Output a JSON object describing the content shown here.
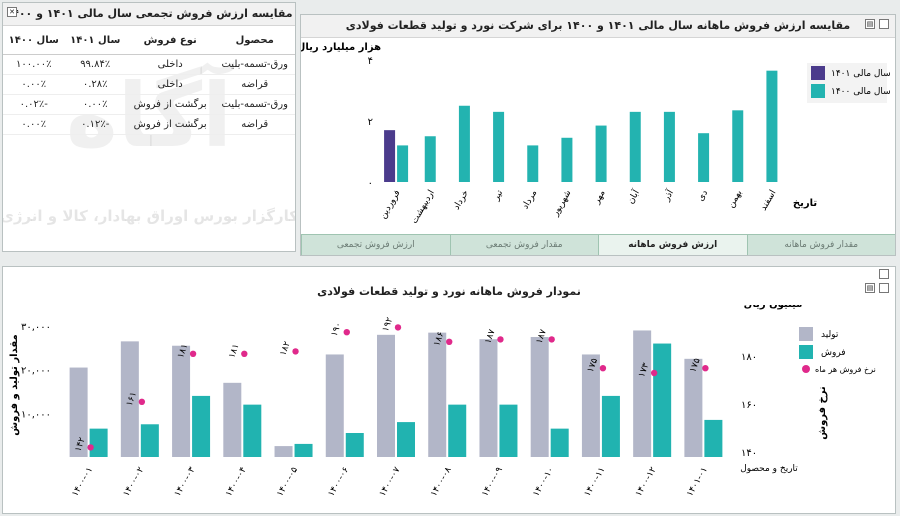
{
  "summary_panel": {
    "title": "مقایسه ارزش فروش تجمعی سال مالی ۱۴۰۱ و ۱۴۰۰",
    "headers": [
      "سال ۱۴۰۰",
      "سال ۱۴۰۱",
      "نوع فروش",
      "محصول"
    ],
    "rows": [
      [
        "۱۰۰.۰۰٪",
        "۹۹.۸۴٪",
        "داخلی",
        "ورق-تسمه-بلیت"
      ],
      [
        "۰.۰۰٪",
        "۰.۲۸٪",
        "داخلی",
        "قراضه"
      ],
      [
        "-۰.۰۲٪",
        "۰.۰۰٪",
        "برگشت از فروش",
        "ورق-تسمه-بلیت"
      ],
      [
        "۰.۰۰٪",
        "-۰.۱۲٪",
        "برگشت از فروش",
        "قراضه"
      ]
    ],
    "watermark_brand": "آگاه",
    "watermark_tagline": "کارگزار بورس اوراق بهادار، کالا و انرژی"
  },
  "monthly_panel": {
    "title": "مقایسه ارزش فروش ماهانه سال مالی ۱۴۰۱ و ۱۴۰۰ برای شرکت نورد و تولید قطعات فولادی",
    "tabs": [
      "ارزش فروش تجمعی",
      "مقدار فروش تجمعی",
      "ارزش فروش ماهانه",
      "مقدار فروش ماهانه"
    ],
    "active_tab": 2
  },
  "production_panel": {
    "title": "نمودار فروش ماهانه نورد و تولید قطعات فولادی"
  },
  "chart_data": [
    {
      "type": "bar",
      "ylabel": "هزار میلیارد ریال",
      "xlabel": "تاریخ",
      "ylim": [
        0,
        4
      ],
      "yticks": [
        "۰",
        "۲",
        "۴"
      ],
      "categories": [
        "فروردین",
        "اردیبهشت",
        "خرداد",
        "تیر",
        "مرداد",
        "شهریور",
        "مهر",
        "آبان",
        "آذر",
        "دی",
        "بهمن",
        "اسفند"
      ],
      "series": [
        {
          "name": "سال مالی ۱۴۰۱",
          "color": "#4b3b8c",
          "values": [
            1.7,
            null,
            null,
            null,
            null,
            null,
            null,
            null,
            null,
            null,
            null,
            null
          ]
        },
        {
          "name": "سال مالی ۱۴۰۰",
          "color": "#23b3b0",
          "values": [
            1.2,
            1.5,
            2.5,
            2.3,
            1.2,
            1.45,
            1.85,
            2.3,
            2.3,
            1.6,
            2.35,
            3.65
          ]
        }
      ],
      "legend": "top-right",
      "grid": false
    },
    {
      "type": "bar",
      "ylabel": "مقدار تولید و فروش",
      "ylabel_right": "نرخ فروش",
      "xlabel": "تاریخ و محصول",
      "unit_right": "میلیون ریال",
      "ylim": [
        0,
        33000
      ],
      "yticks": [
        "۱۰,۰۰۰",
        "۲۰,۰۰۰",
        "۳۰,۰۰۰"
      ],
      "y2lim": [
        138,
        198
      ],
      "y2ticks": [
        "۱۴۰",
        "۱۶۰",
        "۱۸۰"
      ],
      "categories": [
        "۱۴۰۰-۰۱",
        "۱۴۰۰-۰۲",
        "۱۴۰۰-۰۳",
        "۱۴۰۰-۰۴",
        "۱۴۰۰-۰۵",
        "۱۴۰۰-۰۶",
        "۱۴۰۰-۰۷",
        "۱۴۰۰-۰۸",
        "۱۴۰۰-۰۹",
        "۱۴۰۰-۱۰",
        "۱۴۰۰-۱۱",
        "۱۴۰۰-۱۲",
        "۱۴۰۱-۰۱"
      ],
      "series": [
        {
          "name": "تولید",
          "color": "#b2b6c8",
          "values": [
            20500,
            26500,
            25500,
            17000,
            2500,
            23500,
            28000,
            28500,
            27000,
            27500,
            23500,
            29000,
            22500
          ]
        },
        {
          "name": "فروش",
          "color": "#21b3b0",
          "values": [
            6500,
            7500,
            14000,
            12000,
            3000,
            5500,
            8000,
            12000,
            12000,
            6500,
            14000,
            26000,
            8500
          ]
        },
        {
          "name": "نرخ فروش هر ماه",
          "color": "#e0298b",
          "type": "scatter",
          "values": [
            142,
            161,
            181,
            181,
            182,
            190,
            192,
            186,
            187,
            187,
            175,
            173,
            175
          ],
          "labels": [
            "۱۴۲",
            "۱۶۱",
            "۱۸۱",
            "۱۸۱",
            "۱۸۲",
            "۱۹۰",
            "۱۹۲",
            "۱۸۶",
            "۱۸۷",
            "۱۸۷",
            "۱۷۵",
            "۱۷۳",
            "۱۷۵"
          ]
        }
      ],
      "legend": "right",
      "grid": false
    }
  ]
}
